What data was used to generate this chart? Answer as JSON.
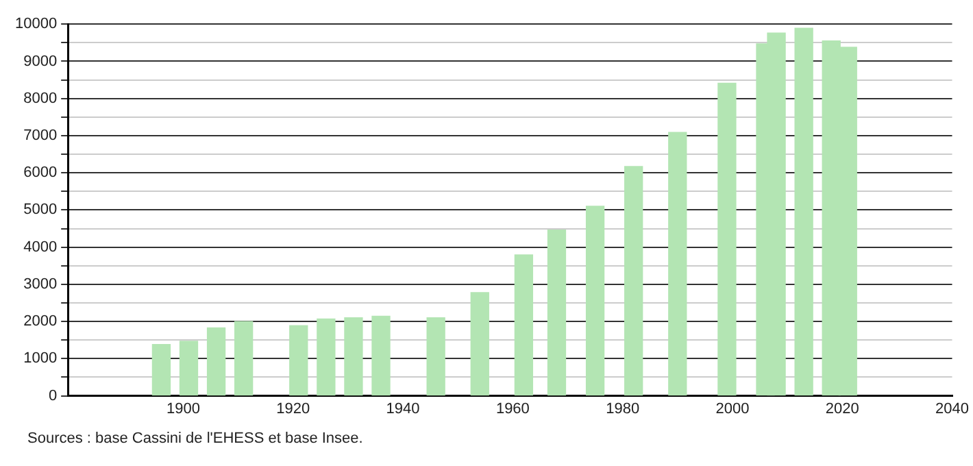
{
  "chart_data": {
    "type": "bar",
    "x": [
      1896,
      1901,
      1906,
      1911,
      1921,
      1926,
      1931,
      1936,
      1946,
      1954,
      1962,
      1968,
      1975,
      1982,
      1990,
      1999,
      2006,
      2008,
      2013,
      2018,
      2021
    ],
    "values": [
      1380,
      1470,
      1830,
      2000,
      1890,
      2070,
      2100,
      2140,
      2100,
      2780,
      3790,
      4460,
      5100,
      6170,
      7090,
      8410,
      9470,
      9760,
      9890,
      9550,
      9380
    ],
    "color": "#b3e5b3",
    "xlim": [
      1879,
      2040
    ],
    "xticks": [
      1900,
      1920,
      1940,
      1960,
      1980,
      2000,
      2020,
      2040
    ],
    "ylim": [
      0,
      10000
    ],
    "yticks": [
      0,
      {
        "value": 500,
        "label": null
      },
      1000,
      {
        "value": 1500,
        "label": null
      },
      2000,
      {
        "value": 2500,
        "label": null
      },
      3000,
      {
        "value": 3500,
        "label": null
      },
      4000,
      {
        "value": 4500,
        "label": null
      },
      5000,
      {
        "value": 5500,
        "label": null
      },
      6000,
      {
        "value": 6500,
        "label": null
      },
      7000,
      {
        "value": 7500,
        "label": null
      },
      8000,
      {
        "value": 8500,
        "label": null
      },
      9000,
      {
        "value": 9500,
        "label": null
      },
      10000
    ],
    "grid": "y",
    "annotations": [
      "Sources : base Cassini de l'EHESS et base Insee."
    ]
  }
}
